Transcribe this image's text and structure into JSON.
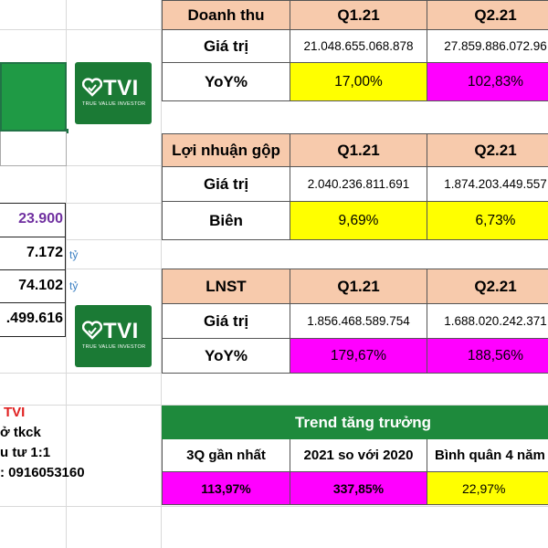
{
  "tables": {
    "revenue": {
      "title": "Doanh thu",
      "periods": [
        "Q1.21",
        "Q2.21"
      ],
      "value_label": "Giá trị",
      "values": [
        "21.048.655.068.878",
        "27.859.886.072.96"
      ],
      "ratio_label": "YoY%",
      "ratios": [
        "17,00%",
        "102,83%"
      ]
    },
    "gross_profit": {
      "title": "Lợi nhuận gộp",
      "periods": [
        "Q1.21",
        "Q2.21"
      ],
      "value_label": "Giá trị",
      "values": [
        "2.040.236.811.691",
        "1.874.203.449.557"
      ],
      "ratio_label": "Biên",
      "ratios": [
        "9,69%",
        "6,73%"
      ]
    },
    "net_profit": {
      "title": "LNST",
      "periods": [
        "Q1.21",
        "Q2.21"
      ],
      "value_label": "Giá trị",
      "values": [
        "1.856.468.589.754",
        "1.688.020.242.371"
      ],
      "ratio_label": "YoY%",
      "ratios": [
        "179,67%",
        "188,56%"
      ]
    }
  },
  "trend": {
    "title": "Trend tăng trưởng",
    "headers": [
      "3Q gần nhất",
      "2021 so với 2020",
      "Bình quân 4 năm"
    ],
    "values": [
      "113,97%",
      "337,85%",
      "22,97%"
    ]
  },
  "logo": {
    "text": "TVI",
    "subtext": "TRUE VALUE INVESTOR"
  },
  "left_values": {
    "price": "23.900",
    "v2": "7.172",
    "v3": "74.102",
    "v4": ".499.616",
    "unit": "tỷ"
  },
  "info": {
    "brand": "TVI",
    "line2": "ở tkck",
    "line3": "u tư 1:1",
    "line4": ": 0916053160"
  },
  "colors": {
    "header_peach": "#f7caac",
    "highlight_yellow": "#ffff00",
    "highlight_magenta": "#ff00ff",
    "brand_green": "#1e8a3c",
    "price_purple": "#7030a0",
    "brand_red": "#e02020"
  }
}
